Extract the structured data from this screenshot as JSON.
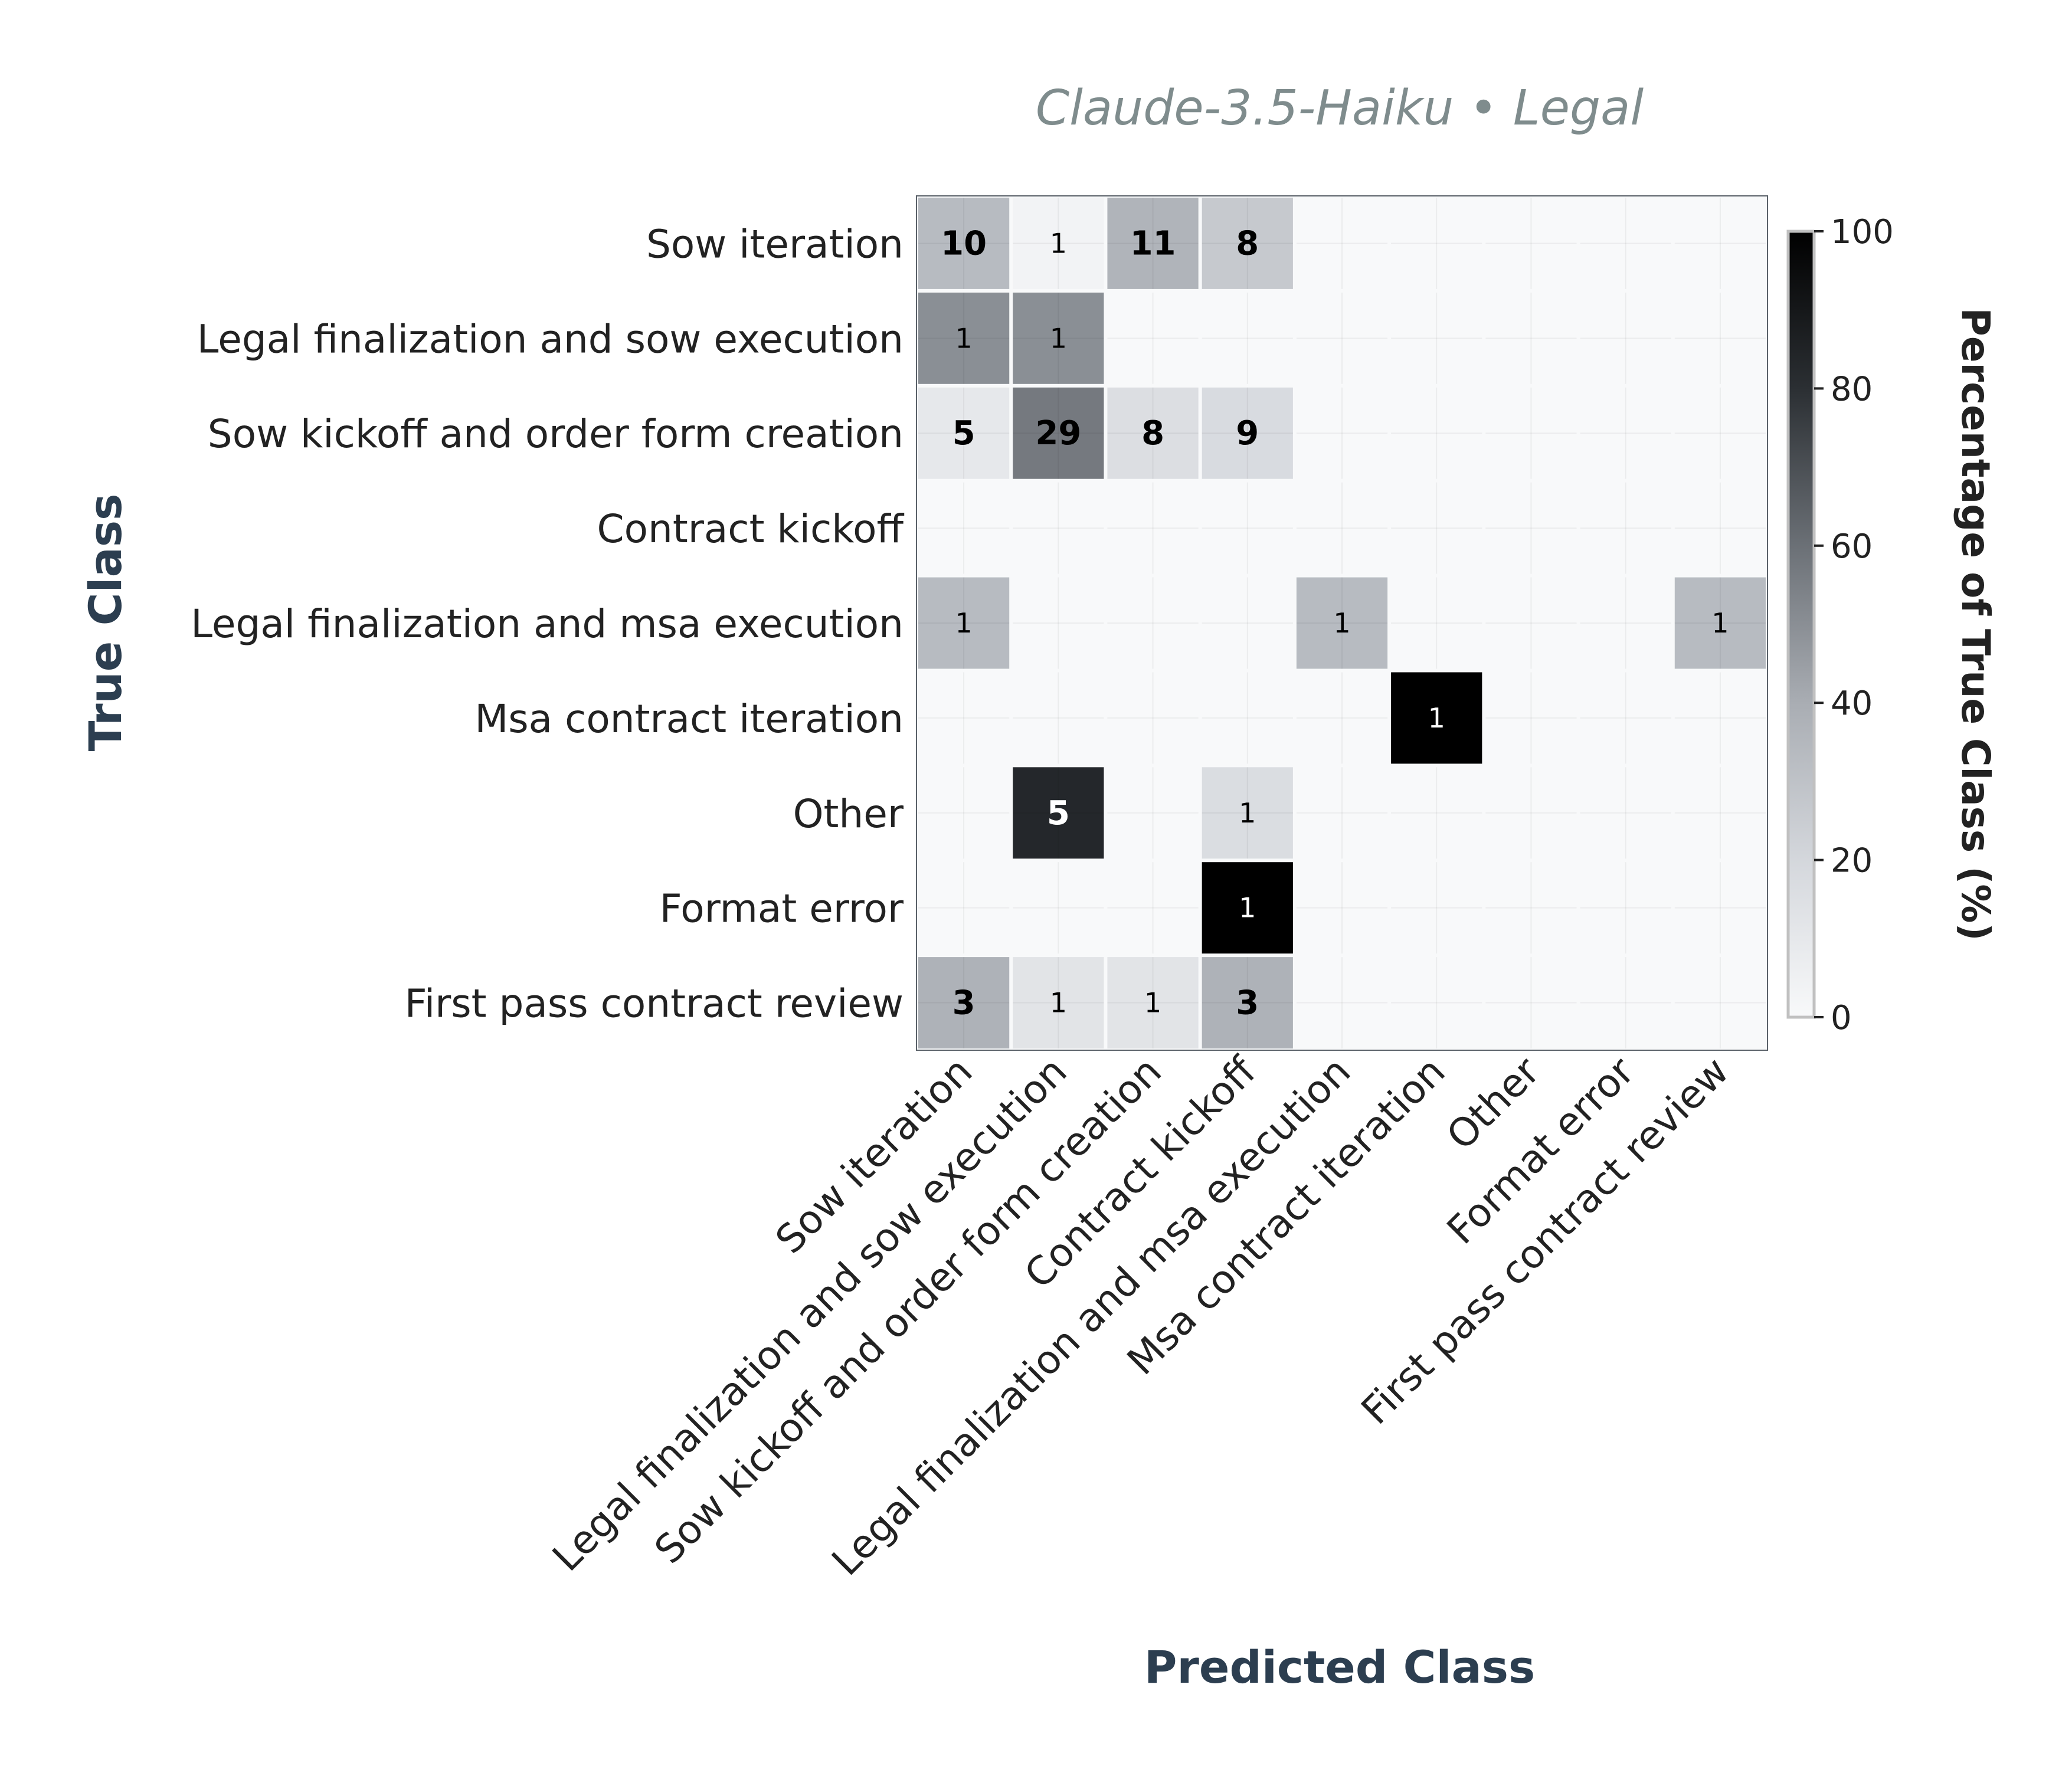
{
  "chart_data": {
    "type": "heatmap",
    "title": "Claude-3.5-Haiku • Legal",
    "xlabel": "Predicted Class",
    "ylabel": "True Class",
    "row_labels": [
      "Sow iteration",
      "Legal finalization and sow execution",
      "Sow kickoff and order form creation",
      "Contract kickoff",
      "Legal finalization and msa execution",
      "Msa contract iteration",
      "Other",
      "Format error",
      "First pass contract review"
    ],
    "col_labels": [
      "Sow iteration",
      "Legal finalization and sow execution",
      "Sow kickoff and order form creation",
      "Contract kickoff",
      "Legal finalization and msa execution",
      "Msa contract iteration",
      "Other",
      "Format error",
      "First pass contract review"
    ],
    "counts": [
      [
        10,
        1,
        11,
        8,
        null,
        null,
        null,
        null,
        null
      ],
      [
        1,
        1,
        null,
        null,
        null,
        null,
        null,
        null,
        null
      ],
      [
        5,
        29,
        8,
        9,
        null,
        null,
        null,
        null,
        null
      ],
      [
        null,
        null,
        null,
        null,
        null,
        null,
        null,
        null,
        null
      ],
      [
        1,
        null,
        null,
        null,
        1,
        null,
        null,
        null,
        1
      ],
      [
        null,
        null,
        null,
        null,
        null,
        1,
        null,
        null,
        null
      ],
      [
        null,
        5,
        null,
        1,
        null,
        null,
        null,
        null,
        null
      ],
      [
        null,
        null,
        null,
        1,
        null,
        null,
        null,
        null,
        null
      ],
      [
        3,
        1,
        1,
        3,
        null,
        null,
        null,
        null,
        null
      ]
    ],
    "percentages": [
      [
        33.3,
        3.3,
        36.7,
        26.7,
        0,
        0,
        0,
        0,
        0
      ],
      [
        50,
        50,
        0,
        0,
        0,
        0,
        0,
        0,
        0
      ],
      [
        9.8,
        56.9,
        15.7,
        17.6,
        0,
        0,
        0,
        0,
        0
      ],
      [
        0,
        0,
        0,
        0,
        0,
        0,
        0,
        0,
        0
      ],
      [
        33.3,
        0,
        0,
        0,
        33.3,
        0,
        0,
        0,
        33.3
      ],
      [
        0,
        0,
        0,
        0,
        0,
        100,
        0,
        0,
        0
      ],
      [
        0,
        83.3,
        0,
        16.7,
        0,
        0,
        0,
        0,
        0
      ],
      [
        0,
        0,
        0,
        100,
        0,
        0,
        0,
        0,
        0
      ],
      [
        37.5,
        12.5,
        12.5,
        37.5,
        0,
        0,
        0,
        0,
        0
      ]
    ],
    "bold_counts": [
      [
        true,
        false,
        true,
        true,
        false,
        false,
        false,
        false,
        false
      ],
      [
        false,
        false,
        false,
        false,
        false,
        false,
        false,
        false,
        false
      ],
      [
        true,
        true,
        true,
        true,
        false,
        false,
        false,
        false,
        false
      ],
      [
        false,
        false,
        false,
        false,
        false,
        false,
        false,
        false,
        false
      ],
      [
        false,
        false,
        false,
        false,
        false,
        false,
        false,
        false,
        false
      ],
      [
        false,
        false,
        false,
        false,
        false,
        false,
        false,
        false,
        false
      ],
      [
        false,
        true,
        false,
        false,
        false,
        false,
        false,
        false,
        false
      ],
      [
        false,
        false,
        false,
        false,
        false,
        false,
        false,
        false,
        false
      ],
      [
        true,
        false,
        false,
        true,
        false,
        false,
        false,
        false,
        false
      ]
    ],
    "colorbar": {
      "label": "Percentage of True Class (%)",
      "range": [
        0,
        100
      ],
      "ticks": [
        "0",
        "20",
        "40",
        "60",
        "80",
        "100"
      ],
      "colors": [
        "#f8f9fa",
        "#d4d7dc",
        "#a9adb3",
        "#6b7076",
        "#2b2f33",
        "#000000"
      ]
    },
    "grid": true,
    "colors": {
      "title": "#7f8c8d",
      "axis_label": "#2c3e50",
      "tick_label": "#222222",
      "empty_cell": "#f8f9fa",
      "cell_gap": "#ffffff"
    }
  }
}
